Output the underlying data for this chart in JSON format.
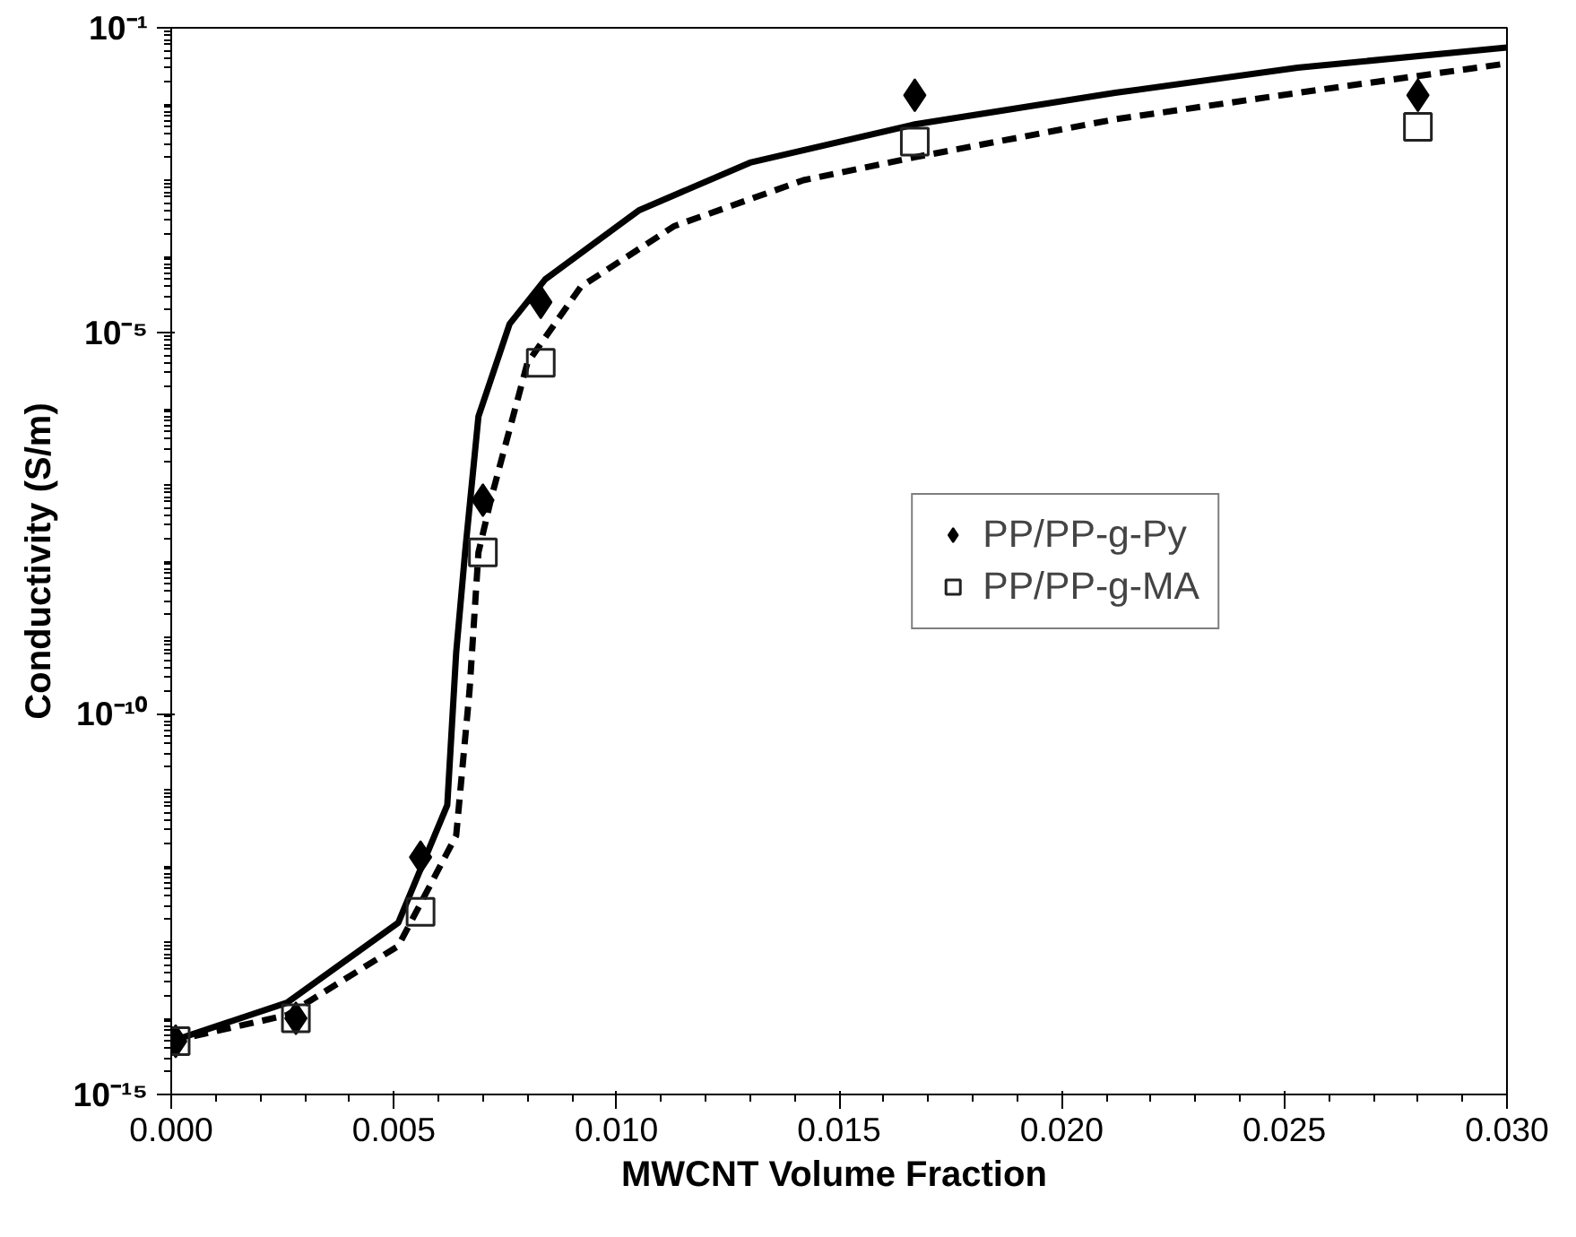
{
  "chart_data": {
    "type": "line",
    "xlabel": "MWCNT Volume  Fraction",
    "ylabel": "Conductivity (S/m)",
    "log": "y",
    "grid": false,
    "legend": "right",
    "xlim": [
      0,
      0.03
    ],
    "xticks": [
      {
        "value": 0,
        "label": "0.000"
      },
      {
        "value": 0.005,
        "label": "0.005"
      },
      {
        "value": 0.01,
        "label": "0.010"
      },
      {
        "value": 0.015,
        "label": "0.015"
      },
      {
        "value": 0.02,
        "label": "0.020"
      },
      {
        "value": 0.025,
        "label": "0.025"
      },
      {
        "value": 0.03,
        "label": "0.030"
      }
    ],
    "ylim": [
      1e-15,
      0.1
    ],
    "yticks": [
      {
        "value": 1e-15,
        "label": "10⁻¹⁵"
      },
      {
        "value": 1e-10,
        "label": "10⁻¹⁰"
      },
      {
        "value": 1e-05,
        "label": "10⁻⁵"
      },
      {
        "value": 0.1,
        "label": "10⁻¹"
      }
    ],
    "series": [
      {
        "color": "#000000",
        "line_style": "solid",
        "marker": "none",
        "x": [
          0.0,
          0.0026,
          0.0051,
          0.0062,
          0.0064,
          0.0066,
          0.0069,
          0.0076,
          0.0084,
          0.0105,
          0.013,
          0.0167,
          0.0212,
          0.0253,
          0.03
        ],
        "values": [
          5e-15,
          1.6e-14,
          1.8e-13,
          6.3e-12,
          6.3e-10,
          1.3e-08,
          7.9e-07,
          1.3e-05,
          5e-05,
          0.0004,
          0.0017,
          0.0054,
          0.014,
          0.03,
          0.055
        ]
      },
      {
        "color": "#000000",
        "line_style": "dashed",
        "marker": "none",
        "x": [
          0.0,
          0.0026,
          0.0051,
          0.0064,
          0.0067,
          0.0069,
          0.0072,
          0.008,
          0.0092,
          0.0113,
          0.0142,
          0.0167,
          0.0212,
          0.0253,
          0.03
        ],
        "values": [
          5e-15,
          1.1e-14,
          8.9e-14,
          2.5e-12,
          2e-10,
          1.3e-08,
          7.2e-08,
          4e-06,
          4e-05,
          0.00025,
          0.001,
          0.002,
          0.0063,
          0.014,
          0.034
        ]
      },
      {
        "type": "scatter",
        "name": "PP/PP-g-Py",
        "color": "#000000",
        "marker": "diamond",
        "x": [
          0.0001,
          0.0028,
          0.0056,
          0.007,
          0.0083,
          0.0167,
          0.028
        ],
        "values": [
          5e-15,
          1e-14,
          1.3e-12,
          6.3e-08,
          2.5e-05,
          0.013,
          0.013
        ]
      },
      {
        "type": "scatter",
        "name": "PP/PP-g-MA",
        "color": "#222222",
        "marker": "square",
        "x": [
          0.0001,
          0.0028,
          0.0056,
          0.007,
          0.0083,
          0.0167,
          0.028
        ],
        "values": [
          5e-15,
          1e-14,
          2.5e-13,
          1.3e-08,
          4e-06,
          0.0032,
          0.005
        ]
      }
    ]
  }
}
